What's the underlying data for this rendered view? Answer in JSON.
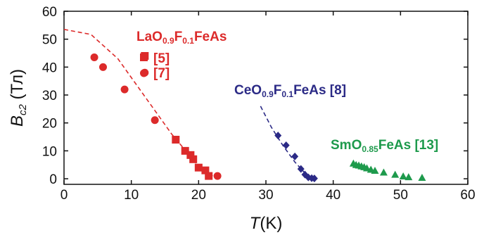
{
  "chart_data": {
    "type": "scatter",
    "xlabel": {
      "symbol": "T",
      "unit": "(K)"
    },
    "ylabel": {
      "symbol": "B",
      "subscript": "c2",
      "unit": "(Тл)"
    },
    "xlim": [
      0,
      60
    ],
    "ylim": [
      -2,
      60
    ],
    "xticks": [
      0,
      10,
      20,
      30,
      40,
      50,
      60
    ],
    "yticks": [
      0,
      10,
      20,
      30,
      40,
      50,
      60
    ],
    "grid": false,
    "colors": {
      "la": "#dc2a2a",
      "ce": "#2b2a86",
      "sm": "#1e9a4c",
      "axis": "#111111"
    },
    "series": [
      {
        "key": "la_sq",
        "marker": "square",
        "color": "#dc2a2a",
        "x": [
          12.0,
          16.6,
          18.0,
          18.8,
          19.2,
          20.0,
          21.0,
          21.5
        ],
        "y": [
          44.0,
          14.0,
          10.0,
          8.5,
          7.0,
          4.0,
          3.0,
          1.0
        ]
      },
      {
        "key": "la_circ",
        "marker": "circle",
        "color": "#dc2a2a",
        "x": [
          4.5,
          5.8,
          9.0,
          13.5,
          12.0,
          22.8
        ],
        "y": [
          43.5,
          40.0,
          32.0,
          21.0,
          38.0,
          1.0
        ]
      },
      {
        "key": "ce",
        "marker": "diamond",
        "color": "#2b2a86",
        "x": [
          31.8,
          33.0,
          34.3,
          35.2,
          35.8,
          36.3,
          36.8,
          37.2
        ],
        "y": [
          15.5,
          12.0,
          8.0,
          3.5,
          1.5,
          0.5,
          0.2,
          0.1
        ]
      },
      {
        "key": "sm",
        "marker": "triangle",
        "color": "#1e9a4c",
        "x": [
          43.0,
          43.4,
          43.8,
          44.2,
          44.6,
          45.0,
          45.6,
          46.2,
          47.5,
          49.2,
          50.4,
          51.2,
          53.2
        ],
        "y": [
          5.5,
          5.0,
          4.8,
          4.5,
          4.2,
          3.8,
          3.3,
          2.9,
          2.3,
          1.5,
          0.9,
          0.6,
          0.4
        ]
      }
    ],
    "fit_lines": [
      {
        "key": "la_fit",
        "color": "#dc2a2a",
        "style": "dashed",
        "x": [
          0,
          4,
          8,
          12,
          16,
          20,
          22.5
        ],
        "y": [
          53.5,
          51.7,
          43.0,
          29.5,
          16.0,
          4.5,
          0.3
        ]
      },
      {
        "key": "ce_fit",
        "color": "#2b2a86",
        "style": "dashed",
        "x": [
          29.2,
          30.8,
          32.5,
          34.3,
          36.0,
          37.0
        ],
        "y": [
          26.0,
          18.5,
          12.0,
          6.0,
          1.5,
          0.2
        ]
      }
    ]
  },
  "annotations": {
    "la": {
      "parts": [
        {
          "text": "LaO",
          "sub": false
        },
        {
          "text": "0.9",
          "sub": true
        },
        {
          "text": "F",
          "sub": false
        },
        {
          "text": "0.1",
          "sub": true
        },
        {
          "text": "FeAs",
          "sub": false
        }
      ],
      "ref_square": "[5]",
      "ref_circle": "[7]"
    },
    "ce": {
      "parts": [
        {
          "text": "CeO",
          "sub": false
        },
        {
          "text": "0.9",
          "sub": true
        },
        {
          "text": "F",
          "sub": false
        },
        {
          "text": "0.1",
          "sub": true
        },
        {
          "text": "FeAs [8]",
          "sub": false
        }
      ]
    },
    "sm": {
      "parts": [
        {
          "text": "SmO",
          "sub": false
        },
        {
          "text": "0.85",
          "sub": true
        },
        {
          "text": "FeAs [13]",
          "sub": false
        }
      ]
    }
  }
}
